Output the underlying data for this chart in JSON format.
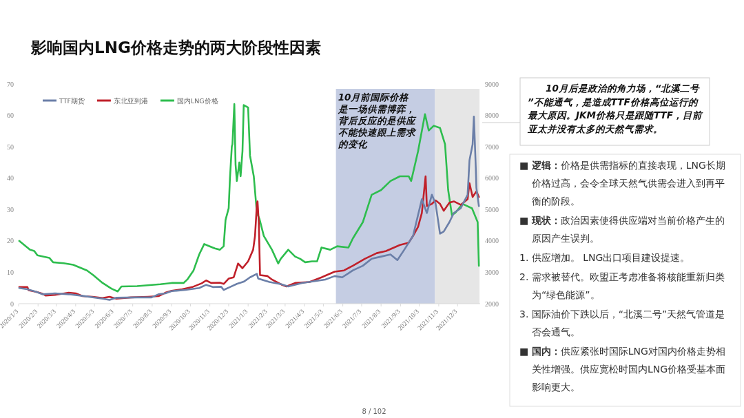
{
  "chart_data": {
    "type": "line",
    "title": "影响国内LNG价格走势的两大阶段性因素",
    "xlim": [
      "2020-01-03",
      "2022-01-08"
    ],
    "xticks": [
      {
        "value": "2020-01-03",
        "label": "2020/1/3"
      },
      {
        "value": "2020-02-03",
        "label": "2020/2/3"
      },
      {
        "value": "2020-03-03",
        "label": "2020/3/3"
      },
      {
        "value": "2020-04-03",
        "label": "2020/4/3"
      },
      {
        "value": "2020-05-03",
        "label": "2020/5/3"
      },
      {
        "value": "2020-06-03",
        "label": "2020/6/3"
      },
      {
        "value": "2020-07-03",
        "label": "2020/7/3"
      },
      {
        "value": "2020-08-03",
        "label": "2020/8/3"
      },
      {
        "value": "2020-09-03",
        "label": "2020/9/3"
      },
      {
        "value": "2020-10-03",
        "label": "2020/10/3"
      },
      {
        "value": "2020-11-03",
        "label": "2020/11/3"
      },
      {
        "value": "2020-12-03",
        "label": "2020/12/3"
      },
      {
        "value": "2021-01-03",
        "label": "2021/1/3"
      },
      {
        "value": "2021-02-03",
        "label": "2021/2/3"
      },
      {
        "value": "2021-03-03",
        "label": "2021/3/3"
      },
      {
        "value": "2021-04-03",
        "label": "2021/4/3"
      },
      {
        "value": "2021-05-03",
        "label": "2021/5/3"
      },
      {
        "value": "2021-06-03",
        "label": "2021/6/3"
      },
      {
        "value": "2021-07-03",
        "label": "2021/7/3"
      },
      {
        "value": "2021-08-03",
        "label": "2021/8/3"
      },
      {
        "value": "2021-09-03",
        "label": "2021/9/3"
      },
      {
        "value": "2021-10-03",
        "label": "2021/10/3"
      },
      {
        "value": "2021-11-03",
        "label": "2021/11/3"
      },
      {
        "value": "2021-12-03",
        "label": "2021/12/3"
      }
    ],
    "ylim": [
      0,
      70
    ],
    "yticks": [
      0,
      10,
      20,
      30,
      40,
      50,
      60,
      70
    ],
    "y2lim": [
      2000,
      9000
    ],
    "y2ticks": [
      2000,
      3000,
      4000,
      5000,
      6000,
      7000,
      8000,
      9000
    ],
    "legend": "top left",
    "bands": [
      {
        "axis": "x",
        "from": "2021-05-23",
        "to": "2021-10-28",
        "color": "#c5cde3",
        "label": "10月前国际价格是一场供需博弈，背后反应的是供应不能快速跟上需求的变化"
      },
      {
        "axis": "x",
        "from": "2021-10-28",
        "to": "2022-01-07",
        "color": "#e6e6e6"
      }
    ],
    "series": [
      {
        "name": "TTF期货",
        "color": "#6b7fa8",
        "x": [
          "2020-01-04",
          "2020-01-17",
          "2020-01-31",
          "2020-02-10",
          "2020-03-01",
          "2020-03-23",
          "2020-04-14",
          "2020-05-16",
          "2020-05-27",
          "2020-06-07",
          "2020-07-10",
          "2020-08-02",
          "2020-08-13",
          "2020-08-24",
          "2020-09-03",
          "2020-09-25",
          "2020-10-17",
          "2020-10-28",
          "2020-11-08",
          "2020-11-21",
          "2020-11-25",
          "2020-12-05",
          "2020-12-16",
          "2020-12-27",
          "2021-01-06",
          "2021-01-17",
          "2021-01-19",
          "2021-02-06",
          "2021-02-25",
          "2021-03-08",
          "2021-03-30",
          "2021-04-23",
          "2021-05-06",
          "2021-05-21",
          "2021-06-02",
          "2021-06-19",
          "2021-07-05",
          "2021-07-19",
          "2021-08-03",
          "2021-08-18",
          "2021-08-29",
          "2021-09-09",
          "2021-09-23",
          "2021-10-07",
          "2021-10-15",
          "2021-10-23",
          "2021-10-29",
          "2021-11-05",
          "2021-11-11",
          "2021-11-20",
          "2021-11-27",
          "2021-12-08",
          "2021-12-19",
          "2021-12-22",
          "2021-12-27",
          "2021-12-29",
          "2022-01-01",
          "2022-01-02",
          "2022-01-06"
        ],
        "values": [
          5.0,
          4.6,
          3.8,
          3.0,
          3.3,
          3.0,
          2.5,
          1.6,
          1.2,
          1.9,
          2.0,
          2.0,
          3.0,
          3.3,
          4.0,
          4.4,
          5.0,
          6.0,
          5.3,
          5.4,
          4.4,
          5.3,
          6.3,
          7.0,
          8.4,
          9.5,
          8.0,
          6.9,
          6.2,
          5.5,
          6.6,
          7.3,
          7.7,
          8.8,
          8.4,
          10.6,
          12.1,
          14.3,
          15.0,
          15.7,
          13.9,
          17.2,
          21.6,
          33.3,
          28.9,
          34.7,
          31.8,
          22.3,
          23.0,
          26.0,
          28.9,
          30.4,
          34.7,
          45.7,
          50.8,
          59.6,
          43.5,
          36.9,
          31.1
        ]
      },
      {
        "name": "东北亚到港",
        "color": "#c0202a",
        "x": [
          "2020-01-04",
          "2020-01-17",
          "2020-01-19",
          "2020-01-31",
          "2020-02-10",
          "2020-02-15",
          "2020-03-01",
          "2020-03-23",
          "2020-04-03",
          "2020-04-14",
          "2020-04-30",
          "2020-05-16",
          "2020-05-27",
          "2020-06-07",
          "2020-06-30",
          "2020-07-27",
          "2020-08-13",
          "2020-08-24",
          "2020-09-03",
          "2020-09-20",
          "2020-10-06",
          "2020-10-21",
          "2020-10-28",
          "2020-11-05",
          "2020-11-19",
          "2020-11-25",
          "2020-12-03",
          "2020-12-11",
          "2020-12-18",
          "2020-12-25",
          "2021-01-03",
          "2021-01-11",
          "2021-01-14",
          "2021-01-17",
          "2021-01-18",
          "2021-01-20",
          "2021-01-22",
          "2021-02-03",
          "2021-02-10",
          "2021-02-25",
          "2021-03-05",
          "2021-03-19",
          "2021-04-11",
          "2021-04-30",
          "2021-05-21",
          "2021-06-05",
          "2021-06-19",
          "2021-07-08",
          "2021-07-27",
          "2021-08-11",
          "2021-09-02",
          "2021-09-16",
          "2021-09-23",
          "2021-10-01",
          "2021-10-07",
          "2021-10-13",
          "2021-10-15",
          "2021-10-23",
          "2021-10-29",
          "2021-11-05",
          "2021-11-11",
          "2021-11-20",
          "2021-11-27",
          "2021-12-08",
          "2021-12-19",
          "2021-12-22",
          "2021-12-27",
          "2022-01-02",
          "2022-01-06"
        ],
        "values": [
          5.3,
          5.3,
          4.3,
          3.8,
          3.2,
          2.6,
          2.8,
          3.5,
          3.3,
          2.4,
          2.2,
          1.8,
          2.2,
          1.6,
          2.0,
          2.2,
          2.4,
          3.5,
          4.1,
          4.6,
          5.3,
          6.5,
          7.4,
          6.6,
          6.7,
          6.3,
          8.0,
          8.4,
          12.8,
          11.3,
          13.5,
          17.2,
          21.6,
          31.8,
          32.6,
          26.0,
          9.1,
          8.8,
          7.7,
          6.1,
          5.5,
          6.6,
          6.9,
          8.4,
          10.2,
          10.6,
          12.1,
          14.3,
          16.1,
          16.8,
          18.7,
          19.4,
          21.6,
          24.5,
          28.9,
          40.6,
          31.1,
          31.8,
          32.9,
          31.8,
          29.6,
          32.2,
          32.6,
          31.5,
          33.3,
          38.4,
          34.0,
          35.8,
          34.0
        ]
      },
      {
        "name": "国内LNG价格",
        "color": "#2ebd4e",
        "axis": "y2",
        "x": [
          "2020-01-04",
          "2020-01-21",
          "2020-01-28",
          "2020-02-02",
          "2020-02-21",
          "2020-02-27",
          "2020-03-15",
          "2020-03-30",
          "2020-04-21",
          "2020-05-01",
          "2020-05-16",
          "2020-05-30",
          "2020-06-09",
          "2020-06-15",
          "2020-07-10",
          "2020-08-16",
          "2020-09-03",
          "2020-09-22",
          "2020-09-28",
          "2020-10-08",
          "2020-10-17",
          "2020-10-25",
          "2020-10-31",
          "2020-11-11",
          "2020-11-19",
          "2020-11-25",
          "2020-11-28",
          "2020-12-03",
          "2020-12-05",
          "2020-12-08",
          "2020-12-09",
          "2020-12-12",
          "2020-12-14",
          "2020-12-16",
          "2020-12-20",
          "2020-12-22",
          "2020-12-25",
          "2020-12-27",
          "2021-01-03",
          "2021-01-06",
          "2021-01-12",
          "2021-01-17",
          "2021-01-21",
          "2021-01-28",
          "2021-02-10",
          "2021-02-20",
          "2021-02-24",
          "2021-03-08",
          "2021-03-19",
          "2021-03-27",
          "2021-04-04",
          "2021-04-15",
          "2021-04-23",
          "2021-04-30",
          "2021-05-14",
          "2021-05-25",
          "2021-06-12",
          "2021-06-19",
          "2021-07-05",
          "2021-07-19",
          "2021-08-03",
          "2021-08-18",
          "2021-09-02",
          "2021-09-16",
          "2021-09-20",
          "2021-10-01",
          "2021-10-12",
          "2021-10-18",
          "2021-10-26",
          "2021-11-05",
          "2021-11-13",
          "2021-11-18",
          "2021-11-24",
          "2021-11-29",
          "2021-12-11",
          "2021-12-26",
          "2022-01-04",
          "2022-01-06"
        ],
        "values": [
          4000,
          3720,
          3680,
          3540,
          3460,
          3320,
          3290,
          3240,
          3060,
          2910,
          2660,
          2480,
          2390,
          2550,
          2560,
          2620,
          2660,
          2660,
          2770,
          3060,
          3570,
          3900,
          3850,
          3760,
          3720,
          3830,
          4670,
          5040,
          5990,
          7010,
          7080,
          8360,
          6430,
          5910,
          6500,
          6060,
          6860,
          8330,
          8250,
          6720,
          6060,
          4890,
          4710,
          4160,
          3720,
          3280,
          3430,
          3720,
          3500,
          3430,
          3320,
          3350,
          3350,
          3790,
          3720,
          3830,
          3790,
          4080,
          4600,
          5470,
          5620,
          5910,
          6060,
          6060,
          5910,
          6860,
          8040,
          7520,
          7670,
          7600,
          7080,
          5620,
          4820,
          4890,
          5180,
          5040,
          4600,
          3210
        ]
      }
    ],
    "annotations": [
      "10月后是政治的角力场，“北溪二号”不能通气，是造成TTF价格高位运行的最大原因。JKM价格只是跟随TTF，目前亚太并没有太多的天然气需求。",
      "■ **逻辑：**价格是供需指标的直接表现，LNG长期价格过高，会令全球天然气供需会进入到再平衡的阶段。",
      "■ **现状：**政治因素使得供应端对当前价格产生的原因产生误判。",
      "1. 供应增加。 LNG出口项目建设提速。",
      "2. 需求被替代。欧盟正考虑准备将核能重新归类为“绿色能源”。",
      "3. 国际油价下跌以后，“北溪二号”天然气管道是否会通气。",
      "■ **国内：**供应紧张时国际LNG对国内价格走势相关性增强。供应宽松时国内LNG价格受基本面影响更大。",
      "8 / 102"
    ]
  }
}
